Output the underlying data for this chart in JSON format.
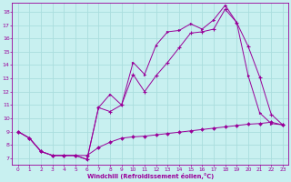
{
  "xlabel": "Windchill (Refroidissement éolien,°C)",
  "bg_color": "#c8f0f0",
  "line_color": "#990099",
  "grid_color": "#aadddd",
  "xlim": [
    -0.5,
    23.5
  ],
  "ylim": [
    6.5,
    18.7
  ],
  "xticks": [
    0,
    1,
    2,
    3,
    4,
    5,
    6,
    7,
    8,
    9,
    10,
    11,
    12,
    13,
    14,
    15,
    16,
    17,
    18,
    19,
    20,
    21,
    22,
    23
  ],
  "yticks": [
    7,
    8,
    9,
    10,
    11,
    12,
    13,
    14,
    15,
    16,
    17,
    18
  ],
  "line1_x": [
    0,
    1,
    2,
    3,
    4,
    5,
    6,
    7,
    8,
    9,
    10,
    11,
    12,
    13,
    14,
    15,
    16,
    17,
    18,
    19,
    20,
    21,
    22,
    23
  ],
  "line1_y": [
    9.0,
    8.5,
    7.5,
    7.2,
    7.2,
    7.2,
    7.2,
    7.8,
    8.2,
    8.5,
    8.6,
    8.65,
    8.75,
    8.85,
    8.95,
    9.05,
    9.15,
    9.25,
    9.35,
    9.45,
    9.55,
    9.6,
    9.7,
    9.5
  ],
  "line2_x": [
    0,
    1,
    2,
    3,
    4,
    5,
    6,
    7,
    8,
    9,
    10,
    11,
    12,
    13,
    14,
    15,
    16,
    17,
    18,
    19,
    20,
    21,
    22,
    23
  ],
  "line2_y": [
    9.0,
    8.5,
    7.5,
    7.2,
    7.2,
    7.2,
    6.9,
    10.8,
    10.5,
    11.0,
    13.3,
    12.0,
    13.2,
    14.2,
    15.3,
    16.4,
    16.5,
    16.7,
    18.2,
    17.2,
    15.4,
    13.1,
    10.3,
    9.5
  ],
  "line3_x": [
    0,
    1,
    2,
    3,
    4,
    5,
    6,
    7,
    8,
    9,
    10,
    11,
    12,
    13,
    14,
    15,
    16,
    17,
    18,
    19,
    20,
    21,
    22,
    23
  ],
  "line3_y": [
    9.0,
    8.5,
    7.5,
    7.2,
    7.2,
    7.2,
    6.9,
    10.8,
    11.8,
    11.0,
    14.2,
    13.3,
    15.5,
    16.5,
    16.6,
    17.1,
    16.7,
    17.4,
    18.5,
    17.2,
    13.2,
    10.4,
    9.6,
    9.5
  ]
}
